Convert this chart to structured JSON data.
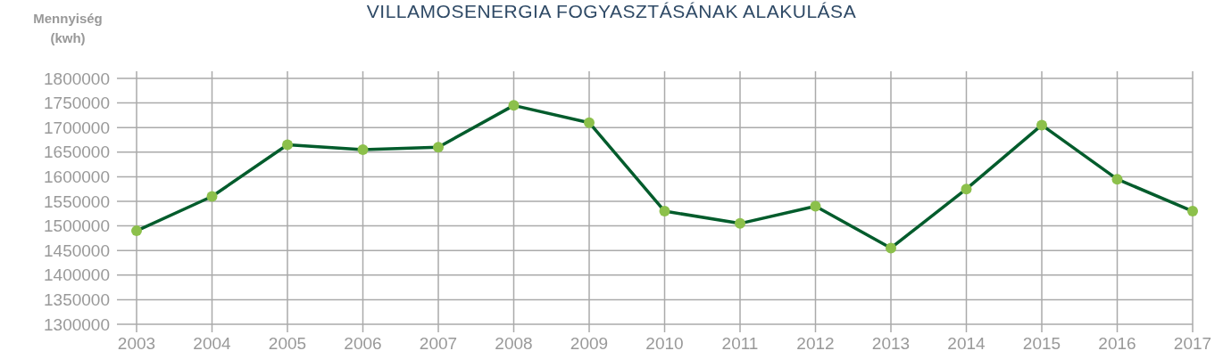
{
  "chart_data": {
    "type": "line",
    "title": "VILLAMOSENERGIA FOGYASZTÁSÁNAK ALAKULÁSA",
    "ylabel": "Mennyiség\n(kwh)",
    "categories": [
      "2003",
      "2004",
      "2005",
      "2006",
      "2007",
      "2008",
      "2009",
      "2010",
      "2011",
      "2012",
      "2013",
      "2014",
      "2015",
      "2016",
      "2017"
    ],
    "series": [
      {
        "color": "#035c2c",
        "colors": [
          "#8cc04b",
          "#8cc04b",
          "#8cc04b",
          "#8cc04b",
          "#8cc04b",
          "#8cc04b",
          "#8cc04b",
          "#8cc04b",
          "#8cc04b",
          "#8cc04b",
          "#8cc04b",
          "#8cc04b",
          "#8cc04b",
          "#8cc04b",
          "#8cc04b"
        ],
        "values": [
          1490000,
          1560000,
          1665000,
          1655000,
          1660000,
          1745000,
          1710000,
          1530000,
          1505000,
          1540000,
          1455000,
          1575000,
          1705000,
          1595000,
          1530000
        ]
      }
    ],
    "ylim": [
      1300000,
      1800000
    ],
    "yticks": [
      1300000,
      1350000,
      1400000,
      1450000,
      1500000,
      1550000,
      1600000,
      1650000,
      1700000,
      1750000,
      1800000
    ],
    "grid": true,
    "marker": "circle",
    "line_style": "solid"
  }
}
